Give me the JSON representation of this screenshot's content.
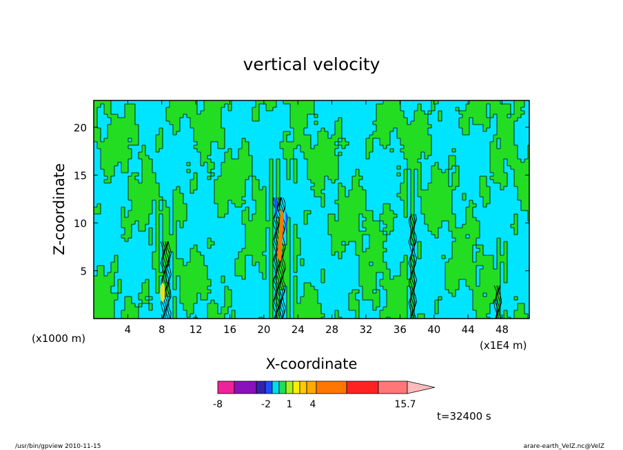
{
  "chart_data": {
    "type": "heatmap",
    "title": "vertical velocity",
    "xlabel": "X-coordinate",
    "ylabel": "Z-coordinate",
    "x_unit_left": "(x1000 m)",
    "x_unit_right": "(x1E4 m)",
    "xlim": [
      0,
      51.2
    ],
    "ylim": [
      0,
      22.8
    ],
    "x_ticks": [
      4,
      8,
      12,
      16,
      20,
      24,
      28,
      32,
      36,
      40,
      44,
      48
    ],
    "y_ticks": [
      5,
      10,
      15,
      20
    ],
    "colors": {
      "background": "#00e5ff",
      "positive": "#22dd22",
      "contour": "#000000",
      "updraft_core": "#ff7700",
      "downdraft_core": "#1e4dff",
      "warm_patch": "#e8e020"
    },
    "features": [
      {
        "kind": "updraft-column",
        "x": 8.5,
        "z_top": 8.2,
        "level": "strong"
      },
      {
        "kind": "updraft-column",
        "x": 21.8,
        "z_top": 12.8,
        "level": "max"
      },
      {
        "kind": "updraft-column",
        "x": 37.5,
        "z_top": 11.5,
        "level": "moderate"
      },
      {
        "kind": "updraft-column",
        "x": 47.5,
        "z_top": 4.0,
        "level": "weak"
      }
    ],
    "colorbar": {
      "colors": [
        "#ee2299",
        "#8811bb",
        "#3322aa",
        "#1e4dff",
        "#00ddee",
        "#22dd55",
        "#aaee22",
        "#ffee00",
        "#ffcc00",
        "#ffaa00",
        "#ff7700",
        "#ff2222",
        "#ff7777"
      ],
      "extend_color": "#ffbbbb",
      "labels": [
        "-8",
        "-2",
        "1",
        "4",
        "15.7"
      ]
    },
    "time_label": "t=32400 s"
  },
  "footer": {
    "left": "/usr/bin/gpview   2010-11-15",
    "right": "arare-earth_VelZ.nc@VelZ"
  }
}
